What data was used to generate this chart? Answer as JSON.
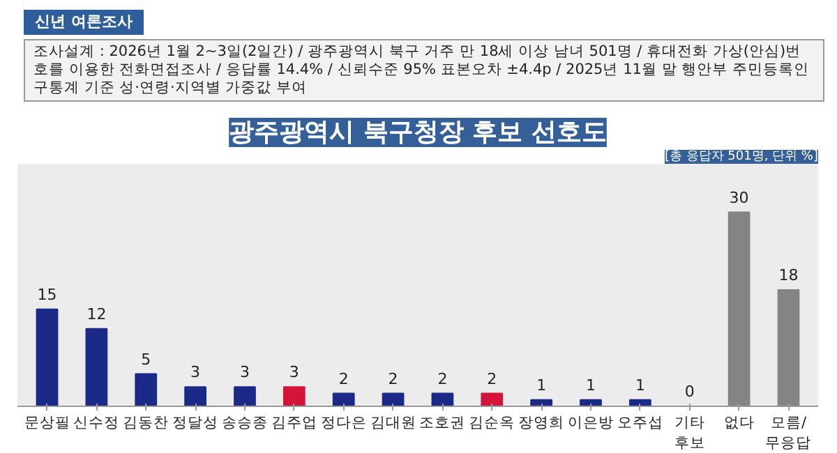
{
  "chart_data": {
    "type": "bar",
    "title": "광주광역시 북구청장 후보 선호도",
    "subtitle": "[총 응답자 501명, 단위 %]",
    "annotations": [
      "신년 여론조사",
      "조사설계 : 2026년 1월 2~3일(2일간) / 광주광역시 북구 거주 만 18세 이상 남녀 501명 / 휴대전화 가상(안심)번호를 이용한 전화면접조사 / 응답률 14.4% / 신뢰수준 95% 표본오차 ±4.4p / 2025년 11월 말 행안부 주민등록인구통계 기준 성·연령·지역별 가중값 부여"
    ],
    "categories": [
      "문상필",
      "신수정",
      "김동찬",
      "정달성",
      "송승종",
      "김주업",
      "정다은",
      "김대원",
      "조호권",
      "김순옥",
      "장영희",
      "이은방",
      "오주섭",
      "기타\n후보",
      "없다",
      "모름/\n무응답"
    ],
    "values": [
      15,
      12,
      5,
      3,
      3,
      3,
      2,
      2,
      2,
      2,
      1,
      1,
      1,
      0,
      30,
      18
    ],
    "colors": [
      "#1b2a86",
      "#1b2a86",
      "#1b2a86",
      "#1b2a86",
      "#1b2a86",
      "#d3153b",
      "#1b2a86",
      "#1b2a86",
      "#1b2a86",
      "#d3153b",
      "#1b2a86",
      "#1b2a86",
      "#1b2a86",
      "#1b2a86",
      "#848484",
      "#848484"
    ],
    "data_labels": true
  }
}
